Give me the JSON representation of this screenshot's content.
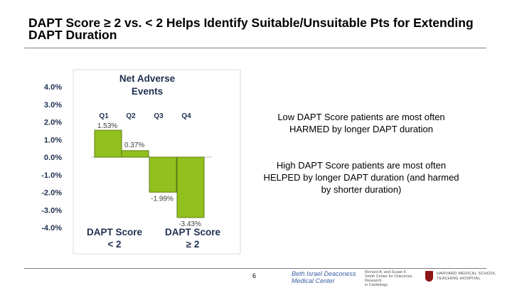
{
  "slide": {
    "title": "DAPT Score ≥ 2 vs. < 2 Helps Identify Suitable/Unsuitable Pts for Extending DAPT Duration",
    "page_number": "6",
    "notes": [
      "Low DAPT Score patients are most often HARMED by longer DAPT duration",
      "High DAPT Score patients are most often HELPED by longer DAPT duration (and harmed by shorter duration)"
    ],
    "footer_logos": {
      "bidmc": [
        "Beth Israel Deaconess",
        "Medical Center"
      ],
      "smith": [
        "Richard A. and Susan F.",
        "Smith Center for Outcomes Research",
        "in Cardiology"
      ],
      "hms": [
        "HARVARD MEDICAL SCHOOL",
        "TEACHING HOSPITAL"
      ]
    }
  },
  "chart_data": {
    "type": "bar",
    "title": "Net Adverse Events",
    "categories": [
      "Q1",
      "Q2",
      "Q3",
      "Q4"
    ],
    "values": [
      1.53,
      0.37,
      -1.99,
      -3.43
    ],
    "data_labels": [
      "1.53%",
      "0.37%",
      "-1.99%",
      "-3.43%"
    ],
    "ylim": [
      -4.0,
      4.0
    ],
    "yticks": [
      "4.0%",
      "3.0%",
      "2.0%",
      "1.0%",
      "0.0%",
      "-1.0%",
      "-2.0%",
      "-3.0%",
      "-4.0%"
    ],
    "ytick_values": [
      4,
      3,
      2,
      1,
      0,
      -1,
      -2,
      -3,
      -4
    ],
    "group_labels": [
      {
        "label": "DAPT Score < 2",
        "lines": [
          "DAPT Score",
          "< 2"
        ]
      },
      {
        "label": "DAPT Score ≥ 2",
        "lines": [
          "DAPT Score",
          "≥ 2"
        ]
      }
    ],
    "bar_color": "#92c01f",
    "bar_stroke": "#5e7d12",
    "grid": false
  }
}
